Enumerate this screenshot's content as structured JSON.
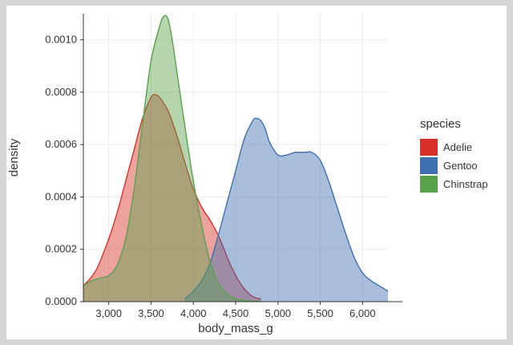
{
  "chart_data": {
    "type": "area",
    "title": "",
    "xlabel": "body_mass_g",
    "ylabel": "density",
    "xlim": [
      2700,
      6300
    ],
    "ylim": [
      0,
      0.0011
    ],
    "x_ticks": [
      3000,
      3500,
      4000,
      4500,
      5000,
      5500,
      6000
    ],
    "x_tick_labels": [
      "3,000",
      "3,500",
      "4,000",
      "4,500",
      "5,000",
      "5,500",
      "6,000"
    ],
    "y_ticks": [
      0,
      0.0002,
      0.0004,
      0.0006,
      0.0008,
      0.001
    ],
    "y_tick_labels": [
      "0.0000",
      "0.0002",
      "0.0004",
      "0.0006",
      "0.0008",
      "0.0010"
    ],
    "grid": true,
    "legend": {
      "title": "species",
      "position": "right"
    },
    "series": [
      {
        "name": "Adelie",
        "color": "#d73027",
        "fill": "#e8908a",
        "x": [
          2700,
          2850,
          3000,
          3100,
          3200,
          3300,
          3400,
          3500,
          3550,
          3600,
          3700,
          3800,
          3900,
          4000,
          4100,
          4200,
          4300,
          4400,
          4500,
          4600,
          4700,
          4800
        ],
        "y": [
          6e-05,
          0.00012,
          0.00024,
          0.00034,
          0.00046,
          0.00058,
          0.0007,
          0.00078,
          0.00079,
          0.00078,
          0.00073,
          0.00064,
          0.00053,
          0.00043,
          0.00036,
          0.00031,
          0.00025,
          0.00017,
          0.0001,
          5e-05,
          2e-05,
          1e-05
        ]
      },
      {
        "name": "Gentoo",
        "color": "#3f6fb0",
        "fill": "#8fb0d5",
        "x": [
          3900,
          4000,
          4100,
          4200,
          4300,
          4400,
          4500,
          4600,
          4700,
          4750,
          4800,
          4850,
          4900,
          5000,
          5100,
          5200,
          5300,
          5400,
          5500,
          5600,
          5700,
          5800,
          5900,
          6000,
          6100,
          6200,
          6300
        ],
        "y": [
          1e-05,
          4e-05,
          8e-05,
          0.00015,
          0.00026,
          0.00038,
          0.0005,
          0.00062,
          0.00069,
          0.0007,
          0.00069,
          0.00066,
          0.00061,
          0.00056,
          0.00056,
          0.00057,
          0.00057,
          0.00057,
          0.00054,
          0.00046,
          0.00036,
          0.00026,
          0.00017,
          0.00011,
          8e-05,
          6e-05,
          4e-05
        ]
      },
      {
        "name": "Chinstrap",
        "color": "#5aa14d",
        "fill": "#a3d196",
        "x": [
          2700,
          2800,
          2900,
          3000,
          3100,
          3200,
          3300,
          3400,
          3500,
          3600,
          3650,
          3700,
          3750,
          3800,
          3900,
          4000,
          4100,
          4200,
          4300,
          4400,
          4500,
          4600,
          4700,
          4800
        ],
        "y": [
          6e-05,
          8e-05,
          9e-05,
          0.0001,
          0.00014,
          0.00024,
          0.00043,
          0.00068,
          0.00092,
          0.00105,
          0.00109,
          0.00108,
          0.001,
          0.00089,
          0.00067,
          0.00046,
          0.00029,
          0.00015,
          7e-05,
          3e-05,
          1e-05,
          5e-06,
          2e-06,
          1e-06
        ]
      }
    ]
  }
}
